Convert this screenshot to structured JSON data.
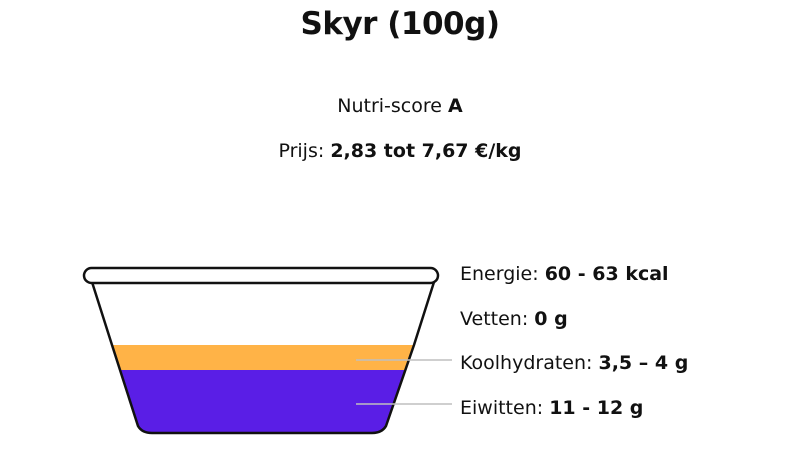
{
  "title": "Skyr (100g)",
  "nutri_score": {
    "label": "Nutri-score",
    "value": "A"
  },
  "price": {
    "label": "Prijs:",
    "value": "2,83 tot 7,67 €/kg"
  },
  "nutrients": [
    {
      "label": "Energie:",
      "value": "60 - 63 kcal"
    },
    {
      "label": "Vetten:",
      "value": "0 g"
    },
    {
      "label": "Koolhydraten:",
      "value": "3,5 – 4 g"
    },
    {
      "label": "Eiwitten:",
      "value": "11 - 12 g"
    }
  ],
  "colors": {
    "carbs_layer": "#ffb347",
    "protein_layer": "#5a1ee6",
    "outline": "#111111",
    "leader_line": "#bfbfbf"
  }
}
